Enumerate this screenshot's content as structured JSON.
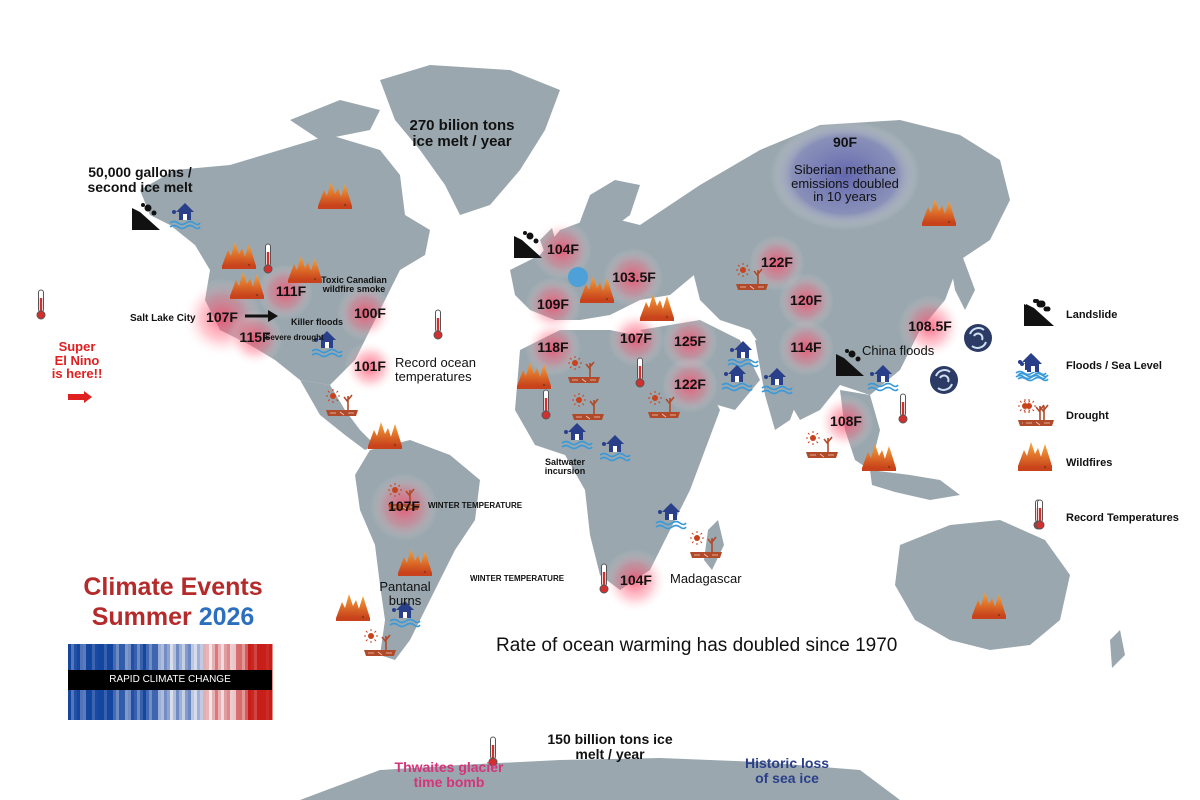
{
  "colors": {
    "land": "#9aa7ae",
    "heat": "#ff4f6a",
    "methane": "#6a6bb0",
    "flood": "#2a3f8a",
    "fire": "#e5722a",
    "title_red": "#b52a2a",
    "title_blue": "#2c6fbf"
  },
  "title": {
    "line1": "Climate Events",
    "line2a": "Summer",
    "line2b": "2026",
    "stripe_label": "RAPID CLIMATE CHANGE"
  },
  "el_nino": {
    "line1": "Super",
    "line2": "El Nino",
    "line3": "is here!!"
  },
  "temps": [
    "107F",
    "111F",
    "115F",
    "100F",
    "101F",
    "104F",
    "103.5F",
    "109F",
    "118F",
    "107F",
    "125F",
    "122F",
    "122F",
    "120F",
    "114F",
    "108.5F",
    "108F",
    "90F",
    "107F",
    "104F"
  ],
  "notes": {
    "alaska_ice": "50,000 gallons /\nsecond ice melt",
    "greenland_ice": "270 bilion tons\nice melt / year",
    "siberia": "Siberian methane\nemissions doubled\nin 10 years",
    "salt_lake": "Salt Lake City",
    "toxic_smoke": "Toxic Canadian\nwildfire smoke",
    "killer_floods": "Killer floods",
    "severe_drought": "Severe drought",
    "record_ocean": "Record ocean\ntemperatures",
    "saltwater": "Saltwater\nincursion",
    "winter_temp_1": "WINTER TEMPERATURE",
    "winter_temp_2": "WINTER TEMPERATURE",
    "pantanal": "Pantanal\nburns",
    "madagascar": "Madagascar",
    "china_floods": "China floods",
    "ocean_warming": "Rate of ocean warming has doubled since 1970",
    "antarctic_ice": "150 billion tons ice\nmelt / year",
    "thwaites": "Thwaites glacier\ntime bomb",
    "sea_ice": "Historic loss\nof sea ice"
  },
  "legend": [
    {
      "icon": "landslide-icon",
      "label": "Landslide"
    },
    {
      "icon": "flood-icon",
      "label": "Floods / Sea Level"
    },
    {
      "icon": "drought-icon",
      "label": "Drought"
    },
    {
      "icon": "wildfire-icon",
      "label": "Wildfires"
    },
    {
      "icon": "thermometer-icon",
      "label": "Record Temperatures"
    }
  ]
}
